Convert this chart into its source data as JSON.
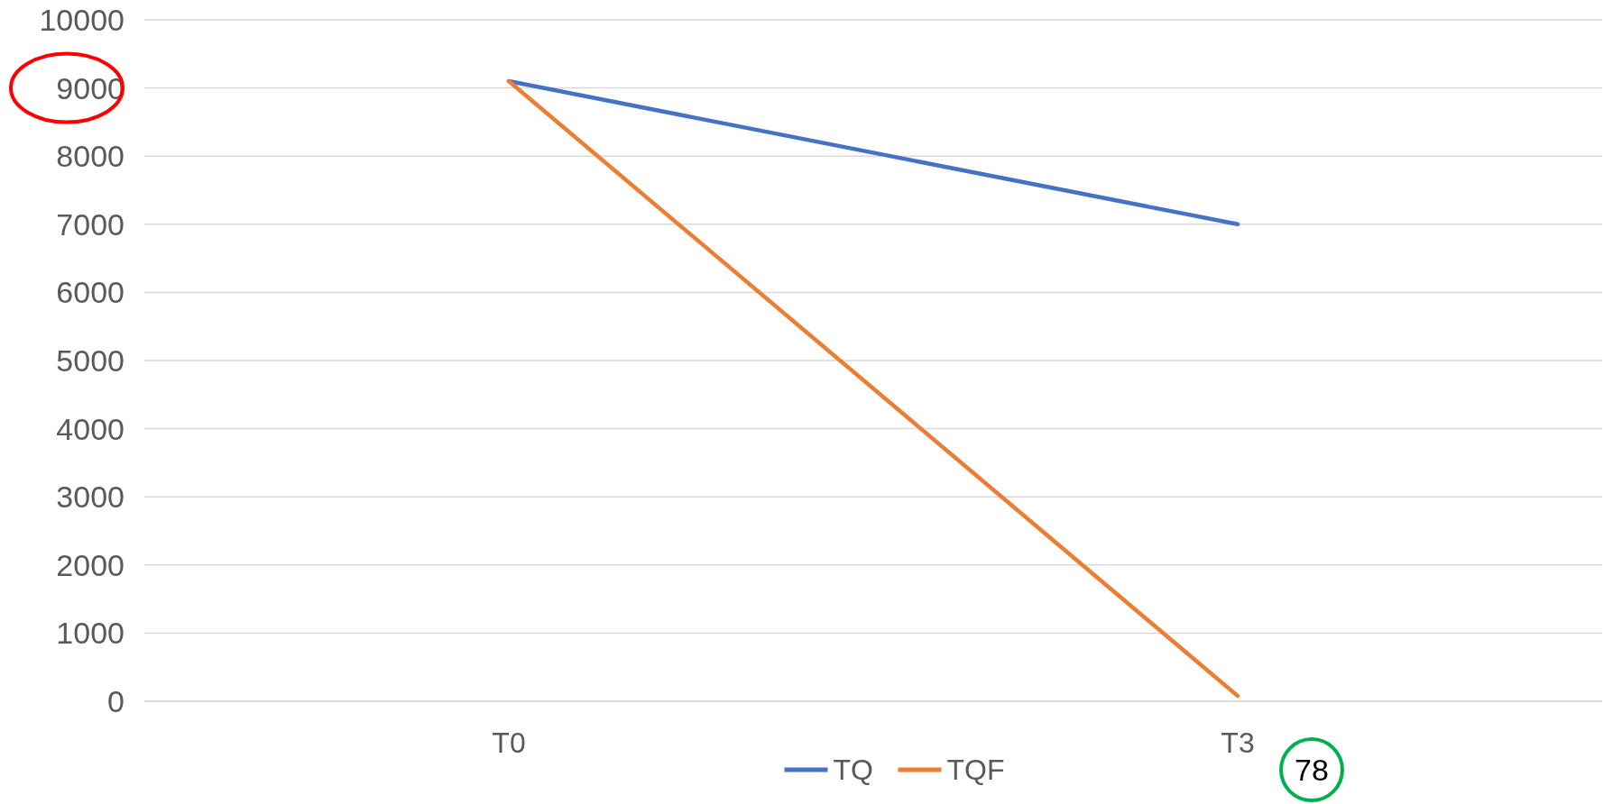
{
  "chart_data": {
    "type": "line",
    "categories": [
      "T0",
      "T3"
    ],
    "series": [
      {
        "name": "TQ",
        "color": "#4472c4",
        "values": [
          9100,
          7000
        ]
      },
      {
        "name": "TQF",
        "color": "#ed7d31",
        "values": [
          9100,
          78
        ]
      }
    ],
    "ylim": [
      0,
      10000
    ],
    "yticks": [
      0,
      1000,
      2000,
      3000,
      4000,
      5000,
      6000,
      7000,
      8000,
      9000,
      10000
    ],
    "grid": "y",
    "legend": "bottom",
    "marker": "none",
    "line_style": "solid",
    "annotations": [
      {
        "text": "78",
        "x": "T3",
        "y": 78
      }
    ]
  }
}
